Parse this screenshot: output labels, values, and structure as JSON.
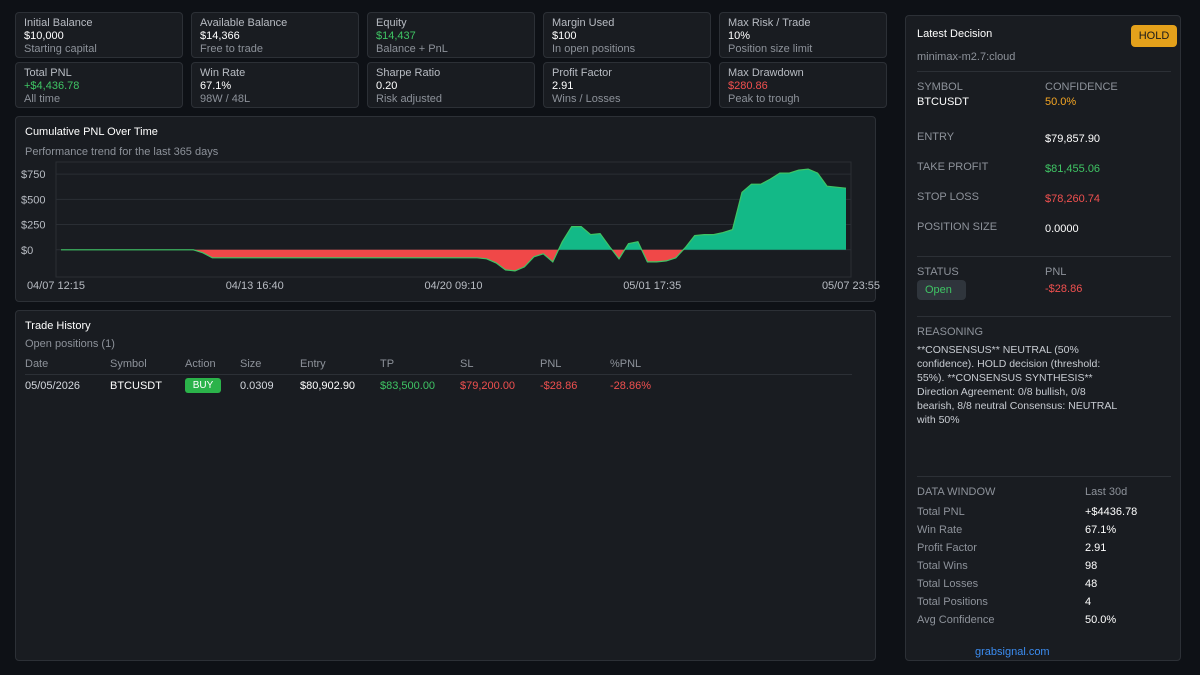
{
  "stats_row1": [
    {
      "label": "Initial Balance",
      "value": "$10,000",
      "sub": "Starting capital",
      "tone": ""
    },
    {
      "label": "Available Balance",
      "value": "$14,366",
      "sub": "Free to trade",
      "tone": ""
    },
    {
      "label": "Equity",
      "value": "$14,437",
      "sub": "Balance + PnL",
      "tone": "green"
    },
    {
      "label": "Margin Used",
      "value": "$100",
      "sub": "In open positions",
      "tone": ""
    },
    {
      "label": "Max Risk / Trade",
      "value": "10%",
      "sub": "Position size limit",
      "tone": ""
    }
  ],
  "stats_row2": [
    {
      "label": "Total PNL",
      "value": "+$4,436.78",
      "sub": "All time",
      "tone": "green"
    },
    {
      "label": "Win Rate",
      "value": "67.1%",
      "sub": "98W / 48L",
      "tone": ""
    },
    {
      "label": "Sharpe Ratio",
      "value": "0.20",
      "sub": "Risk adjusted",
      "tone": ""
    },
    {
      "label": "Profit Factor",
      "value": "2.91",
      "sub": "Wins / Losses",
      "tone": ""
    },
    {
      "label": "Max Drawdown",
      "value": "$280.86",
      "sub": "Peak to trough",
      "tone": "red"
    }
  ],
  "chart": {
    "title": "Cumulative PNL Over Time",
    "subtitle": "Performance trend for the last 365 days"
  },
  "chart_data": {
    "type": "area",
    "title": "Cumulative PNL Over Time",
    "yticks": [
      "$750",
      "$500",
      "$250",
      "$0"
    ],
    "ytick_values": [
      750,
      500,
      250,
      0
    ],
    "xticks": [
      "04/07 12:15",
      "04/13 16:40",
      "04/20 09:10",
      "05/01 17:35",
      "05/07 23:55"
    ],
    "ylim": [
      -270,
      870
    ],
    "colors": {
      "positive": "#13b987",
      "negative": "#f04848",
      "grid": "#2a2e34"
    },
    "values": [
      0,
      0,
      0,
      0,
      0,
      0,
      0,
      0,
      0,
      0,
      0,
      0,
      0,
      0,
      0,
      -30,
      -80,
      -80,
      -80,
      -80,
      -80,
      -80,
      -80,
      -80,
      -80,
      -80,
      -80,
      -80,
      -80,
      -80,
      -80,
      -80,
      -80,
      -80,
      -80,
      -80,
      -80,
      -80,
      -80,
      -80,
      -80,
      -80,
      -80,
      -80,
      -80,
      -90,
      -130,
      -200,
      -210,
      -170,
      -70,
      -40,
      -120,
      80,
      230,
      230,
      150,
      160,
      30,
      -90,
      60,
      80,
      -120,
      -120,
      -110,
      -80,
      20,
      140,
      150,
      150,
      170,
      200,
      570,
      650,
      650,
      700,
      760,
      760,
      790,
      800,
      760,
      630,
      620,
      610
    ],
    "series_name": "Cumulative PNL"
  },
  "history": {
    "title": "Trade History",
    "subtitle": "Open positions (1)",
    "headers": [
      "Date",
      "Symbol",
      "Action",
      "Size",
      "Entry",
      "TP",
      "SL",
      "PNL",
      "%PNL"
    ],
    "rows": [
      {
        "date": "05/05/2026",
        "symbol": "BTCUSDT",
        "action": "BUY",
        "size": "0.0309",
        "entry": "$80,902.90",
        "tp": "$83,500.00",
        "sl": "$79,200.00",
        "pnl": "-$28.86",
        "pct": "-28.86%"
      }
    ]
  },
  "decision": {
    "title": "Latest Decision",
    "model": "minimax-m2.7:cloud",
    "badge": "HOLD",
    "symbol_label": "SYMBOL",
    "symbol": "BTCUSDT",
    "confidence_label": "CONFIDENCE",
    "confidence": "50.0%",
    "entry_label": "ENTRY",
    "entry": "$79,857.90",
    "tp_label": "TAKE PROFIT",
    "tp": "$81,455.06",
    "sl_label": "STOP LOSS",
    "sl": "$78,260.74",
    "size_label": "POSITION SIZE",
    "size": "0.0000",
    "status_label": "STATUS",
    "status": "Open",
    "pnl_label": "PNL",
    "pnl": "-$28.86",
    "reasoning_label": "REASONING",
    "reasoning": "**CONSENSUS** NEUTRAL (50% confidence). HOLD decision (threshold: 55%). **CONSENSUS SYNTHESIS** Direction Agreement: 0/8 bullish, 0/8 bearish, 8/8 neutral Consensus: NEUTRAL with 50%"
  },
  "window": {
    "label": "DATA WINDOW",
    "range": "Last 30d",
    "rows": [
      {
        "k": "Total PNL",
        "v": "+$4436.78"
      },
      {
        "k": "Win Rate",
        "v": "67.1%"
      },
      {
        "k": "Profit Factor",
        "v": "2.91"
      },
      {
        "k": "Total Wins",
        "v": "98"
      },
      {
        "k": "Total Losses",
        "v": "48"
      },
      {
        "k": "Total Positions",
        "v": "4"
      },
      {
        "k": "Avg Confidence",
        "v": "50.0%"
      }
    ]
  },
  "footer": {
    "link": "grabsignal.com"
  }
}
